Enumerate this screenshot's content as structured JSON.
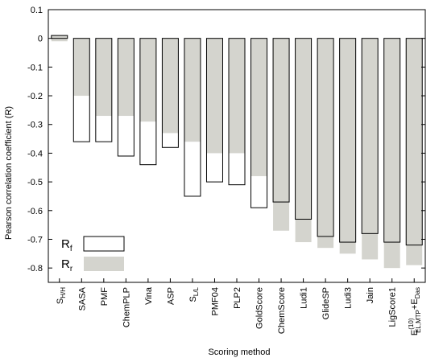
{
  "chart_data": {
    "type": "bar",
    "xlabel": "Scoring method",
    "ylabel": "Pearson correlation coefficient (R)",
    "ylim": [
      -0.85,
      0.1
    ],
    "yticks": [
      0.1,
      0,
      -0.1,
      -0.2,
      -0.3,
      -0.4,
      -0.5,
      -0.6,
      -0.7,
      -0.8
    ],
    "ytick_labels": [
      "0.1",
      "0",
      "-0.1",
      "-0.2",
      "-0.3",
      "-0.4",
      "-0.5",
      "-0.6",
      "-0.7",
      "-0.8"
    ],
    "categories": [
      {
        "base": "S",
        "sub": "H/H",
        "sup": ""
      },
      {
        "base": "SASA",
        "sub": "",
        "sup": ""
      },
      {
        "base": "PMF",
        "sub": "",
        "sup": ""
      },
      {
        "base": "ChemPLP",
        "sub": "",
        "sup": ""
      },
      {
        "base": "Vina",
        "sub": "",
        "sup": ""
      },
      {
        "base": "ASP",
        "sub": "",
        "sup": ""
      },
      {
        "base": "S",
        "sub": "L/L",
        "sup": ""
      },
      {
        "base": "PMF04",
        "sub": "",
        "sup": ""
      },
      {
        "base": "PLP2",
        "sub": "",
        "sup": ""
      },
      {
        "base": "GoldScore",
        "sub": "",
        "sup": ""
      },
      {
        "base": "ChemScore",
        "sub": "",
        "sup": ""
      },
      {
        "base": "Ludi1",
        "sub": "",
        "sup": ""
      },
      {
        "base": "GlideSP",
        "sub": "",
        "sup": ""
      },
      {
        "base": "Ludi3",
        "sub": "",
        "sup": ""
      },
      {
        "base": "Jain",
        "sub": "",
        "sup": ""
      },
      {
        "base": "LigScore1",
        "sub": "",
        "sup": ""
      },
      {
        "base": "E",
        "sub": "EL,MTP",
        "sup": "(10)",
        "suffix_base": "+E",
        "suffix_sub": "Das"
      }
    ],
    "series": [
      {
        "name": "R_f",
        "style": "white fill, black outline",
        "values": [
          0.01,
          -0.36,
          -0.36,
          -0.41,
          -0.44,
          -0.38,
          -0.55,
          -0.5,
          -0.51,
          -0.59,
          -0.57,
          -0.63,
          -0.69,
          -0.71,
          -0.68,
          -0.71,
          -0.72
        ]
      },
      {
        "name": "R_r",
        "style": "gray fill",
        "values": [
          -0.01,
          -0.2,
          -0.27,
          -0.27,
          -0.29,
          -0.33,
          -0.36,
          -0.4,
          -0.4,
          -0.48,
          -0.67,
          -0.71,
          -0.73,
          -0.75,
          -0.77,
          -0.8,
          -0.79
        ]
      }
    ],
    "legend": {
      "position": "lower-left",
      "entries": [
        {
          "base": "R",
          "sub": "f",
          "swatch": "white"
        },
        {
          "base": "R",
          "sub": "r",
          "swatch": "gray"
        }
      ]
    },
    "grid": false,
    "colors": {
      "rr_fill": "#d4d4ce",
      "rf_fill": "#ffffff",
      "outline": "#000000"
    }
  }
}
